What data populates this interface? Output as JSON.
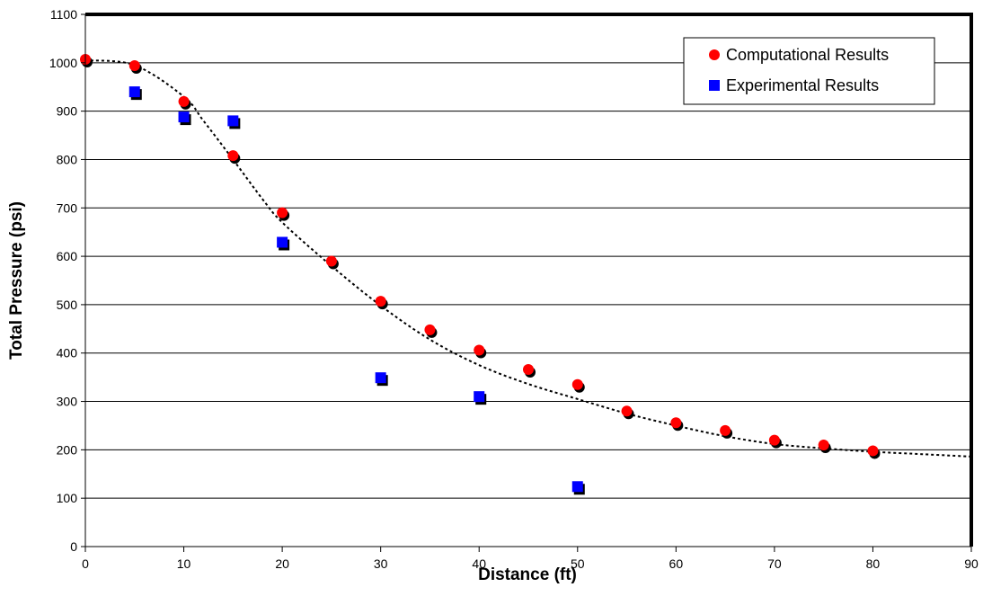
{
  "chart_data": {
    "type": "scatter",
    "xlabel": "Distance (ft)",
    "ylabel": "Total Pressure (psi)",
    "xlim": [
      0,
      90
    ],
    "ylim": [
      0,
      1100
    ],
    "x_ticks": [
      0,
      10,
      20,
      30,
      40,
      50,
      60,
      70,
      80,
      90
    ],
    "y_ticks": [
      0,
      100,
      200,
      300,
      400,
      500,
      600,
      700,
      800,
      900,
      1000,
      1100
    ],
    "grid": "horizontal",
    "legend_position": "top-right",
    "series": [
      {
        "name": "Computational Results",
        "marker": "circle",
        "color": "#ff0000",
        "x": [
          0,
          5,
          10,
          15,
          20,
          25,
          30,
          35,
          40,
          45,
          50,
          55,
          60,
          65,
          70,
          75,
          80
        ],
        "y": [
          1007,
          994,
          920,
          808,
          690,
          590,
          507,
          448,
          406,
          366,
          335,
          280,
          256,
          240,
          220,
          210,
          198
        ]
      },
      {
        "name": "Experimental Results",
        "marker": "square",
        "color": "#0000ff",
        "x": [
          5,
          10,
          15,
          20,
          30,
          40,
          50
        ],
        "y": [
          940,
          888,
          880,
          629,
          349,
          310,
          124
        ]
      }
    ],
    "trendline": {
      "style": "dotted",
      "color": "#000000",
      "x": [
        0,
        5,
        10,
        12,
        15,
        18,
        20,
        25,
        30,
        35,
        40,
        45,
        50,
        55,
        60,
        65,
        70,
        75,
        80,
        85,
        90
      ],
      "y": [
        1005,
        995,
        930,
        880,
        800,
        718,
        670,
        580,
        498,
        428,
        375,
        336,
        305,
        275,
        250,
        228,
        212,
        203,
        196,
        191,
        186
      ]
    }
  }
}
